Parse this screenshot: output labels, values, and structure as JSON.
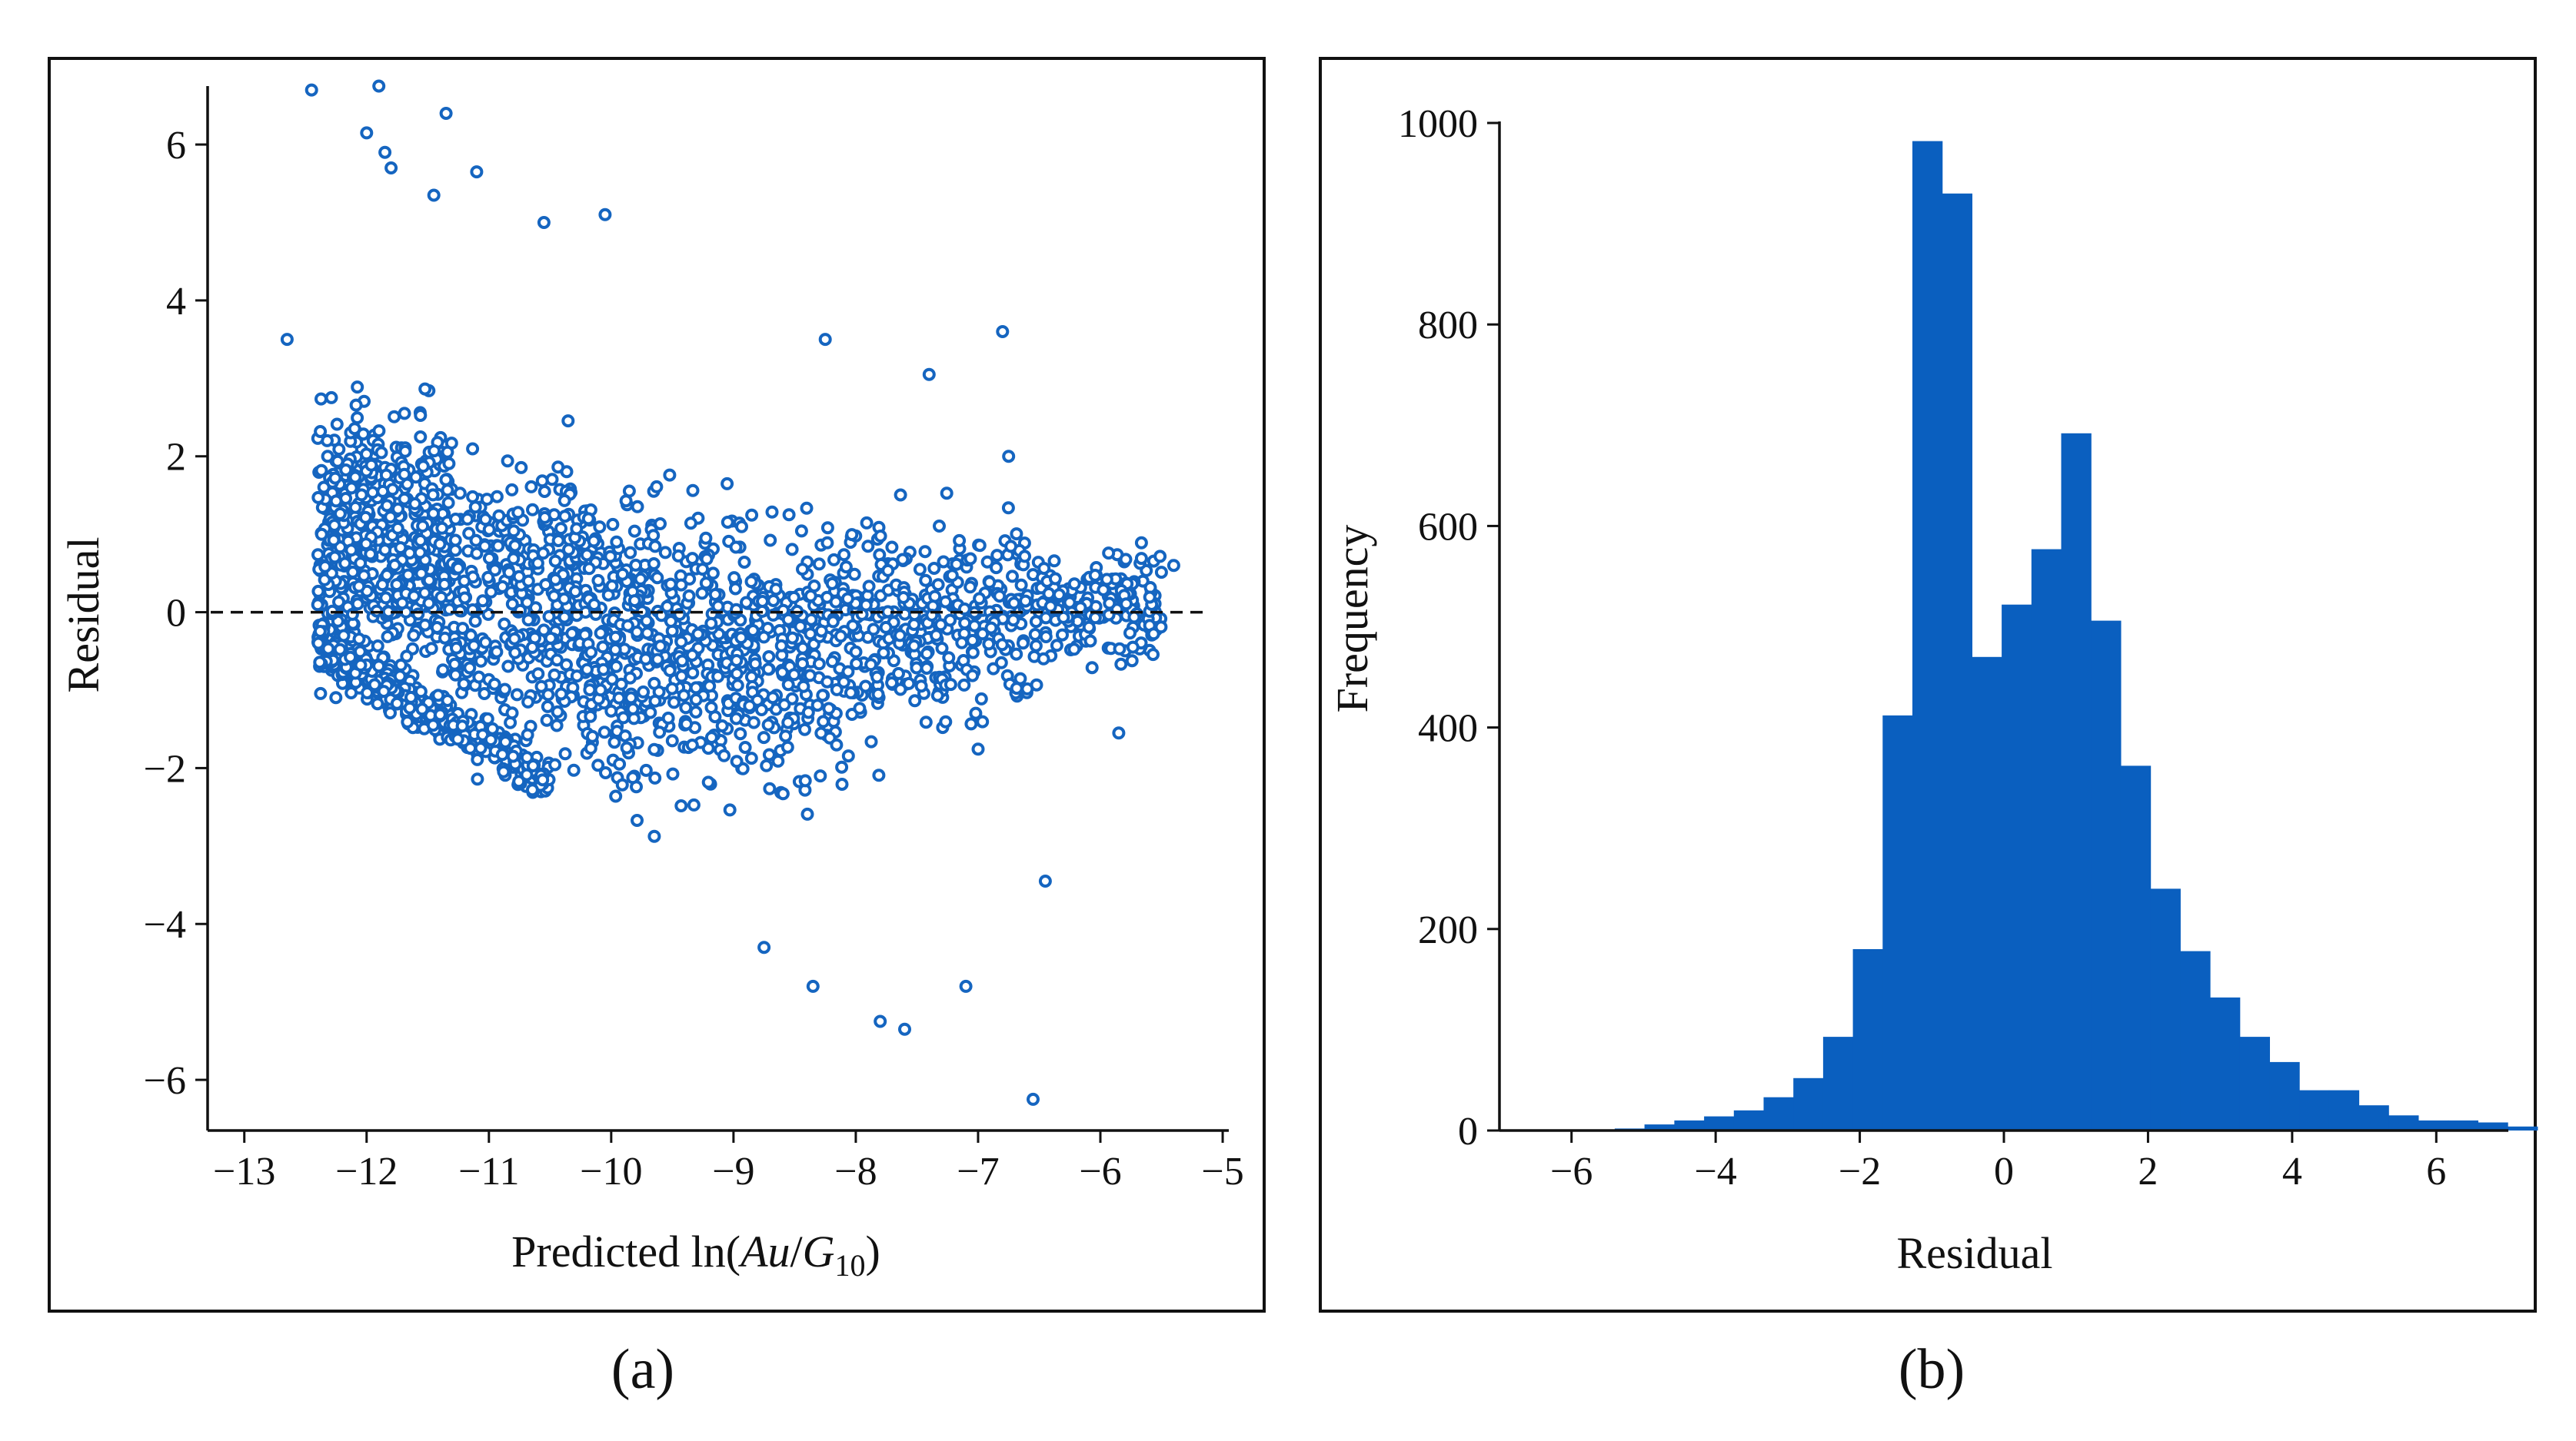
{
  "chart_data": [
    {
      "panel_label": "(a)",
      "type": "scatter",
      "xlabel": {
        "prefix": "Predicted ln(",
        "italic1": "Au",
        "mid": "/",
        "italic2": "G",
        "sub": "10",
        "suffix": ")"
      },
      "ylabel": "Residual",
      "xlim": [
        -13.3,
        -4.95
      ],
      "ylim": [
        -6.65,
        6.75
      ],
      "xticks": [
        -13,
        -12,
        -11,
        -10,
        -9,
        -8,
        -7,
        -6,
        -5
      ],
      "yticks": [
        -6,
        -4,
        -2,
        0,
        2,
        4,
        6
      ],
      "reference_line": {
        "y": 0,
        "style": "dashed"
      },
      "marker": "open-circle",
      "color": "#1565c0",
      "points_note": "",
      "highlighted_points": [
        [
          -12.45,
          6.7
        ],
        [
          -11.9,
          6.75
        ],
        [
          -11.35,
          6.4
        ],
        [
          -12.0,
          6.15
        ],
        [
          -11.85,
          5.9
        ],
        [
          -11.8,
          5.7
        ],
        [
          -11.1,
          5.65
        ],
        [
          -10.05,
          5.1
        ],
        [
          -10.55,
          5.0
        ],
        [
          -11.45,
          5.35
        ],
        [
          -6.8,
          3.6
        ],
        [
          -7.4,
          3.05
        ],
        [
          -8.25,
          3.5
        ],
        [
          -6.55,
          -6.25
        ],
        [
          -6.45,
          -3.45
        ],
        [
          -7.1,
          -4.8
        ],
        [
          -7.6,
          -5.35
        ],
        [
          -7.8,
          -5.25
        ],
        [
          -8.35,
          -4.8
        ],
        [
          -8.75,
          -4.3
        ],
        [
          -12.65,
          3.5
        ],
        [
          -5.4,
          0.6
        ],
        [
          -5.85,
          -1.55
        ],
        [
          -6.75,
          2.0
        ]
      ],
      "clusters": [
        {
          "x": [
            -12.4,
            -11.3
          ],
          "ymin": -1.6,
          "ymax": 3.4,
          "n": 900
        },
        {
          "x": [
            -11.3,
            -10.2
          ],
          "ymin": -2.6,
          "ymax": 2.8,
          "n": 520
        },
        {
          "x": [
            -10.2,
            -9.0
          ],
          "ymin": -3.3,
          "ymax": 2.5,
          "n": 400
        },
        {
          "x": [
            -9.0,
            -7.8
          ],
          "ymin": -3.0,
          "ymax": 2.0,
          "n": 330
        },
        {
          "x": [
            -7.8,
            -6.5
          ],
          "ymin": -2.0,
          "ymax": 1.8,
          "n": 260
        },
        {
          "x": [
            -6.5,
            -5.5
          ],
          "ymin": -1.0,
          "ymax": 1.2,
          "n": 160
        }
      ]
    },
    {
      "panel_label": "(b)",
      "type": "bar",
      "subtype": "histogram",
      "xlabel": "Residual",
      "ylabel": "Frequency",
      "xlim": [
        -7.0,
        7.0
      ],
      "ylim": [
        0,
        1000
      ],
      "xticks": [
        -6,
        -4,
        -2,
        0,
        2,
        4,
        6
      ],
      "yticks": [
        0,
        200,
        400,
        600,
        800,
        1000
      ],
      "color": "#0a5fbf",
      "bin_start": -5.4,
      "bin_width": 0.413,
      "values": [
        2,
        6,
        10,
        14,
        20,
        33,
        52,
        93,
        180,
        412,
        982,
        930,
        470,
        522,
        577,
        692,
        506,
        362,
        240,
        178,
        132,
        93,
        68,
        40,
        40,
        25,
        15,
        10,
        10,
        8,
        4
      ]
    }
  ]
}
